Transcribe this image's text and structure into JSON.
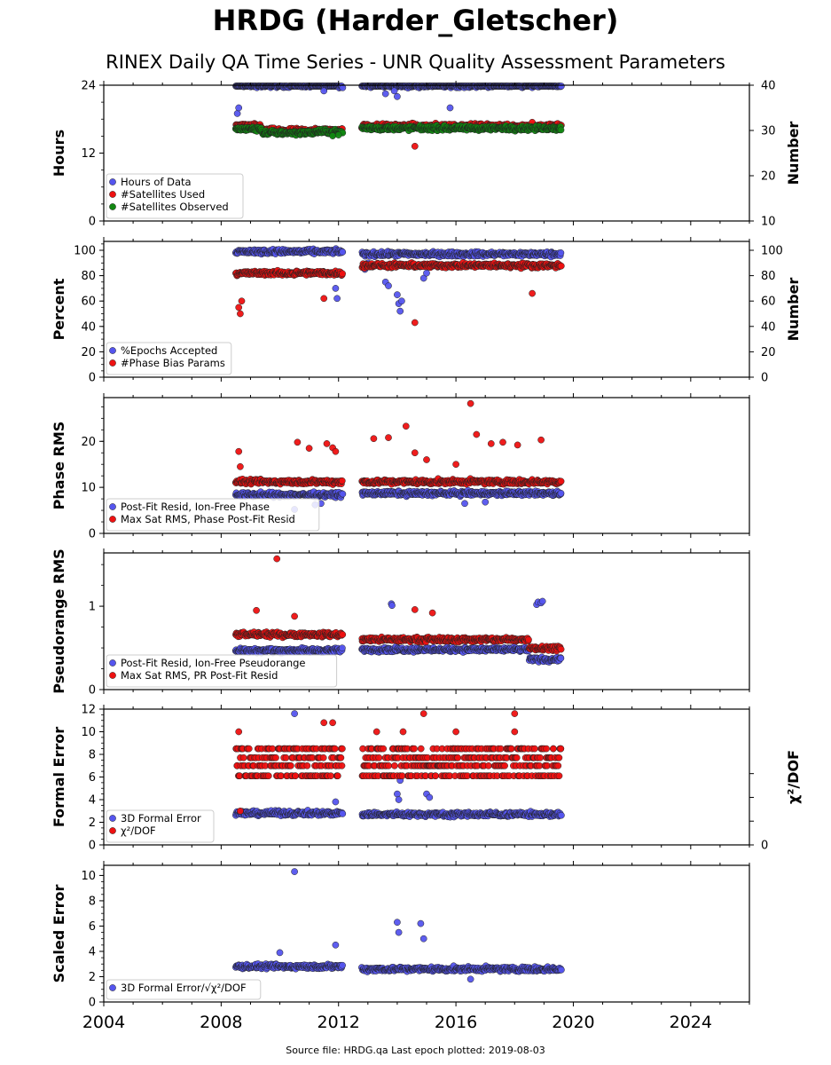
{
  "header": {
    "title": "HRDG (Harder_Gletscher)",
    "subtitle": "RINEX Daily QA Time Series - UNR Quality Assessment Parameters"
  },
  "footer": {
    "text": "Source file: HRDG.qa Last epoch plotted: 2019-08-03"
  },
  "colors": {
    "blue": "#5555ee",
    "red": "#ee1111",
    "green": "#118811",
    "edge": "#222222"
  },
  "chart_data": [
    {
      "type": "scatter",
      "ylabel": "Hours",
      "ylabel_right": "Number",
      "xlim": [
        2004,
        2026
      ],
      "ylim": [
        0,
        24
      ],
      "yticks": [
        0,
        12,
        24
      ],
      "ylim_right": [
        10,
        40
      ],
      "yticks_right": [
        10,
        20,
        30,
        40
      ],
      "legend": "lower-left",
      "series": [
        {
          "name": "Hours of Data",
          "color": "blue",
          "axis": "left",
          "segments": [
            [
              2008.5,
              2012.15,
              24
            ],
            [
              2012.8,
              2019.6,
              24
            ]
          ],
          "outliers": [
            [
              2008.55,
              19
            ],
            [
              2008.6,
              20
            ],
            [
              2008.65,
              17
            ],
            [
              2013.6,
              22.5
            ],
            [
              2014.0,
              22
            ],
            [
              2015.8,
              20
            ],
            [
              2011.5,
              23
            ],
            [
              2013.9,
              23
            ]
          ]
        },
        {
          "name": "#Satellites Used",
          "color": "red",
          "axis": "right",
          "segments": [
            [
              2008.5,
              2009.4,
              31
            ],
            [
              2009.4,
              2011.2,
              30
            ],
            [
              2011.2,
              2012.15,
              30
            ],
            [
              2012.8,
              2019.6,
              31
            ]
          ],
          "outliers": [
            [
              2014.45,
              30.5
            ],
            [
              2018.6,
              31.8
            ],
            [
              2014.6,
              26.5
            ]
          ]
        },
        {
          "name": "#Satellites Observed",
          "color": "green",
          "axis": "right",
          "segments": [
            [
              2008.5,
              2009.4,
              30.3
            ],
            [
              2009.4,
              2011.2,
              29.5
            ],
            [
              2011.2,
              2012.15,
              29.7
            ],
            [
              2012.8,
              2019.6,
              30.5
            ]
          ],
          "outliers": [
            [
              2011.8,
              28.8
            ],
            [
              2012.0,
              29
            ]
          ]
        }
      ]
    },
    {
      "type": "scatter",
      "ylabel": "Percent",
      "ylabel_right": "Number",
      "xlim": [
        2004,
        2026
      ],
      "ylim": [
        0,
        107
      ],
      "yticks": [
        0,
        20,
        40,
        60,
        80,
        100
      ],
      "ylim_right": [
        0,
        107
      ],
      "yticks_right": [
        0,
        20,
        40,
        60,
        80,
        100
      ],
      "legend": "lower-left",
      "series": [
        {
          "name": "%Epochs Accepted",
          "color": "blue",
          "axis": "left",
          "segments": [
            [
              2008.5,
              2012.15,
              99
            ],
            [
              2012.8,
              2019.6,
              97
            ]
          ],
          "outliers": [
            [
              2011.9,
              70
            ],
            [
              2011.95,
              62
            ],
            [
              2013.6,
              75
            ],
            [
              2013.7,
              72
            ],
            [
              2014.0,
              65
            ],
            [
              2014.05,
              58
            ],
            [
              2014.1,
              52
            ],
            [
              2014.15,
              60
            ],
            [
              2014.9,
              78
            ],
            [
              2015.0,
              82
            ],
            [
              2012.9,
              85
            ],
            [
              2013.0,
              90
            ]
          ]
        },
        {
          "name": "#Phase Bias Params",
          "color": "red",
          "axis": "right",
          "segments": [
            [
              2008.5,
              2012.15,
              82
            ],
            [
              2012.8,
              2019.6,
              88
            ]
          ],
          "outliers": [
            [
              2008.6,
              55
            ],
            [
              2008.65,
              50
            ],
            [
              2008.7,
              60
            ],
            [
              2014.6,
              43
            ],
            [
              2011.5,
              62
            ],
            [
              2018.6,
              66
            ]
          ]
        }
      ]
    },
    {
      "type": "scatter",
      "ylabel": "Phase RMS",
      "xlim": [
        2004,
        2026
      ],
      "ylim": [
        0,
        29.5
      ],
      "yticks": [
        0,
        10,
        20
      ],
      "legend": "lower-left",
      "series": [
        {
          "name": "Post-Fit Resid, Ion-Free Phase",
          "color": "blue",
          "segments": [
            [
              2008.5,
              2012.15,
              8.4
            ],
            [
              2012.8,
              2019.6,
              8.7
            ]
          ],
          "outliers": [
            [
              2010.5,
              5.2
            ],
            [
              2011.2,
              6.2
            ],
            [
              2011.4,
              6.5
            ],
            [
              2016.3,
              6.5
            ],
            [
              2017.0,
              6.8
            ]
          ]
        },
        {
          "name": "Max Sat RMS, Phase Post-Fit Resid",
          "color": "red",
          "segments": [
            [
              2008.5,
              2012.15,
              11.2
            ],
            [
              2012.8,
              2019.6,
              11.2
            ]
          ],
          "outliers": [
            [
              2008.6,
              17.8
            ],
            [
              2008.65,
              14.5
            ],
            [
              2010.6,
              19.8
            ],
            [
              2011.0,
              18.5
            ],
            [
              2011.6,
              19.5
            ],
            [
              2011.8,
              18.6
            ],
            [
              2011.9,
              17.8
            ],
            [
              2013.2,
              20.6
            ],
            [
              2013.7,
              20.8
            ],
            [
              2014.3,
              23.3
            ],
            [
              2014.6,
              17.5
            ],
            [
              2016.5,
              28.2
            ],
            [
              2016.7,
              21.5
            ],
            [
              2017.2,
              19.5
            ],
            [
              2017.6,
              19.8
            ],
            [
              2018.1,
              19.2
            ],
            [
              2018.9,
              20.3
            ],
            [
              2015.0,
              16.0
            ],
            [
              2016.0,
              15.0
            ]
          ]
        }
      ]
    },
    {
      "type": "scatter",
      "ylabel": "Pseudorange RMS",
      "xlim": [
        2004,
        2026
      ],
      "ylim": [
        0,
        1.64
      ],
      "yticks": [
        0,
        1
      ],
      "legend": "lower-left",
      "series": [
        {
          "name": "Post-Fit Resid, Ion-Free Pseudorange",
          "color": "blue",
          "segments": [
            [
              2008.5,
              2012.15,
              0.47
            ],
            [
              2012.8,
              2018.5,
              0.48
            ],
            [
              2018.5,
              2019.6,
              0.36
            ]
          ],
          "outliers": [
            [
              2013.8,
              1.03
            ],
            [
              2013.82,
              1.01
            ],
            [
              2018.75,
              1.02
            ],
            [
              2018.8,
              1.05
            ],
            [
              2018.9,
              1.04
            ],
            [
              2018.95,
              1.06
            ]
          ]
        },
        {
          "name": "Max Sat RMS, PR Post-Fit Resid",
          "color": "red",
          "segments": [
            [
              2008.5,
              2012.15,
              0.66
            ],
            [
              2012.8,
              2018.5,
              0.6
            ],
            [
              2018.5,
              2019.6,
              0.5
            ]
          ],
          "outliers": [
            [
              2009.9,
              1.57
            ],
            [
              2009.2,
              0.95
            ],
            [
              2014.6,
              0.96
            ],
            [
              2015.2,
              0.92
            ],
            [
              2010.5,
              0.88
            ]
          ]
        }
      ]
    },
    {
      "type": "scatter",
      "ylabel": "Formal Error",
      "ylabel_right": "χ²/DOF",
      "xlim": [
        2004,
        2026
      ],
      "ylim": [
        0,
        12
      ],
      "yticks": [
        0,
        2,
        4,
        6,
        8,
        10,
        12
      ],
      "yticks_right": [
        0
      ],
      "legend": "lower-left",
      "series": [
        {
          "name": "3D Formal Error",
          "color": "blue",
          "segments": [
            [
              2008.5,
              2012.15,
              2.8
            ],
            [
              2012.8,
              2019.6,
              2.7
            ]
          ],
          "outliers": [
            [
              2010.5,
              11.6
            ],
            [
              2014.1,
              5.7
            ],
            [
              2014.0,
              4.5
            ],
            [
              2014.05,
              4.0
            ],
            [
              2011.9,
              3.8
            ],
            [
              2015.0,
              4.5
            ],
            [
              2015.1,
              4.2
            ]
          ]
        },
        {
          "name": "χ²/DOF",
          "color": "red",
          "levels": [
            6.1,
            7.0,
            7.7,
            8.5
          ],
          "segments": [
            [
              2008.5,
              2012.15,
              7.0
            ],
            [
              2012.8,
              2019.6,
              7.3
            ]
          ],
          "outliers": [
            [
              2008.6,
              10.0
            ],
            [
              2008.65,
              3.0
            ],
            [
              2011.5,
              10.8
            ],
            [
              2011.8,
              10.8
            ],
            [
              2014.9,
              11.6
            ],
            [
              2018.0,
              11.6
            ],
            [
              2018.0,
              10.0
            ],
            [
              2014.2,
              10.0
            ],
            [
              2013.3,
              10.0
            ],
            [
              2016.0,
              10.0
            ]
          ]
        }
      ]
    },
    {
      "type": "scatter",
      "ylabel": "Scaled Error",
      "xlim": [
        2004,
        2026
      ],
      "ylim": [
        0,
        10.8
      ],
      "yticks": [
        0,
        2,
        4,
        6,
        8,
        10
      ],
      "xticks": [
        2004,
        2008,
        2012,
        2016,
        2020,
        2024
      ],
      "legend": "lower-left",
      "series": [
        {
          "name": "3D Formal Error/√χ²/DOF",
          "color": "blue",
          "segments": [
            [
              2008.5,
              2012.15,
              2.8
            ],
            [
              2012.8,
              2019.6,
              2.6
            ]
          ],
          "outliers": [
            [
              2010.5,
              10.3
            ],
            [
              2014.0,
              6.3
            ],
            [
              2014.05,
              5.5
            ],
            [
              2014.8,
              6.2
            ],
            [
              2014.9,
              5.0
            ],
            [
              2011.9,
              4.5
            ],
            [
              2010.0,
              3.9
            ],
            [
              2016.5,
              1.8
            ]
          ]
        }
      ]
    }
  ]
}
